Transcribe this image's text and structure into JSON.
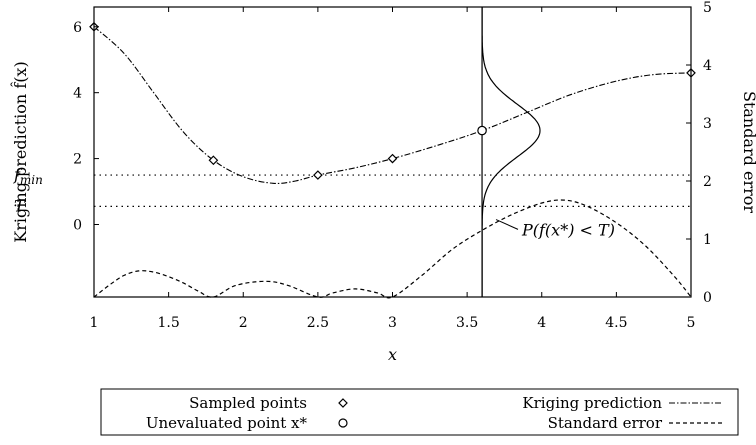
{
  "chart_data": {
    "type": "line",
    "xlabel": "x",
    "ylabel_left": "Kriging prediction f̂(x)",
    "ylabel_right": "Standard error",
    "xlim": [
      1,
      5
    ],
    "ylim_left": [
      -2.2,
      6.6
    ],
    "ylim_right": [
      0,
      5
    ],
    "x_ticks": [
      "1",
      "1.5",
      "2",
      "2.5",
      "3",
      "3.5",
      "4",
      "4.5",
      "5"
    ],
    "y_ticks_left": [
      "0",
      "2",
      "4",
      "6"
    ],
    "y_ticks_right": [
      "0",
      "1",
      "2",
      "3",
      "4",
      "5"
    ],
    "reference_lines": [
      {
        "label": "f",
        "sub": "min",
        "value": 1.5
      },
      {
        "label": "T",
        "sub": "",
        "value": 0.55
      }
    ],
    "sampled_points": {
      "x": [
        1.0,
        1.8,
        2.5,
        3.0,
        5.0
      ],
      "y": [
        6.0,
        1.95,
        1.5,
        2.0,
        4.6
      ]
    },
    "unevaluated_point": {
      "x": 3.6,
      "y": 2.85
    },
    "kriging_prediction": {
      "x": [
        1.0,
        1.2,
        1.4,
        1.6,
        1.8,
        2.0,
        2.2,
        2.35,
        2.5,
        2.75,
        3.0,
        3.3,
        3.6,
        3.9,
        4.2,
        4.5,
        4.75,
        5.0
      ],
      "y": [
        6.0,
        5.2,
        4.0,
        2.8,
        1.95,
        1.45,
        1.25,
        1.32,
        1.5,
        1.72,
        2.0,
        2.4,
        2.85,
        3.4,
        3.95,
        4.35,
        4.55,
        4.6
      ]
    },
    "standard_error": {
      "x": [
        1.0,
        1.1,
        1.2,
        1.3,
        1.4,
        1.5,
        1.6,
        1.7,
        1.8,
        1.95,
        2.15,
        2.3,
        2.5,
        2.6,
        2.75,
        2.9,
        3.0,
        3.2,
        3.4,
        3.6,
        3.8,
        4.0,
        4.15,
        4.3,
        4.5,
        4.7,
        4.9,
        5.0
      ],
      "y": [
        0.0,
        0.2,
        0.37,
        0.45,
        0.43,
        0.35,
        0.24,
        0.1,
        0.0,
        0.2,
        0.27,
        0.2,
        0.0,
        0.07,
        0.14,
        0.07,
        0.0,
        0.38,
        0.82,
        1.15,
        1.42,
        1.62,
        1.67,
        1.57,
        1.28,
        0.87,
        0.32,
        0.0
      ]
    },
    "error_distribution_curve": {
      "x0": 3.6,
      "mean": 2.85,
      "sd": 0.8
    },
    "annotation": "P(f(x*) < T)",
    "legend": {
      "placement": "bottom",
      "entries": [
        {
          "label": "Sampled points",
          "marker": "diamond"
        },
        {
          "label": "Kriging prediction",
          "marker": "dash-dot-line"
        },
        {
          "label": "Unevaluated point x*",
          "marker": "circle"
        },
        {
          "label": "Standard error",
          "marker": "dashed-line"
        }
      ]
    }
  }
}
